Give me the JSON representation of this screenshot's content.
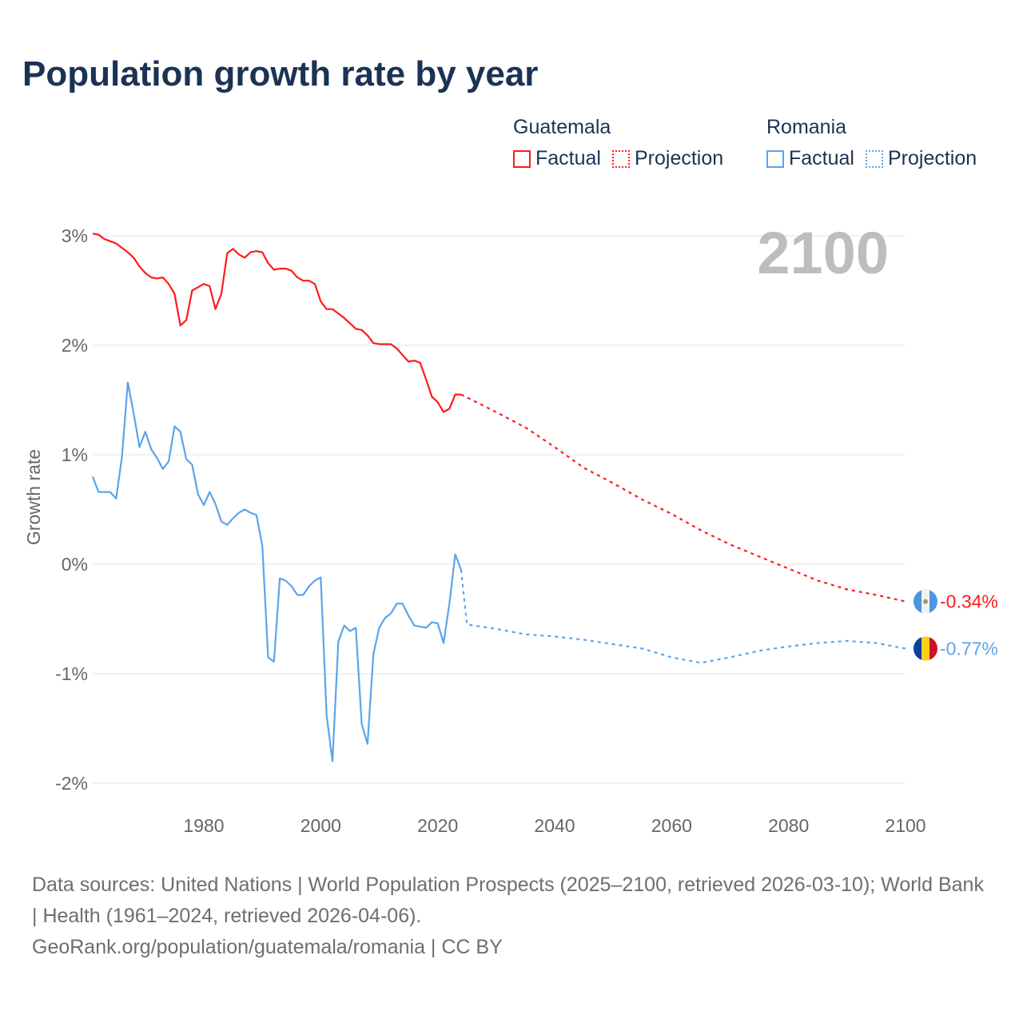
{
  "title": "Population growth rate by year",
  "legend": {
    "groups": [
      {
        "name": "Guatemala",
        "factual": "Factual",
        "projection": "Projection",
        "color": "#ff1a1a"
      },
      {
        "name": "Romania",
        "factual": "Factual",
        "projection": "Projection",
        "color": "#5ba4ea"
      }
    ]
  },
  "year_label": "2100",
  "footer": {
    "sources": "Data sources: United Nations | World Population Prospects (2025–2100, retrieved 2026-03-10); World Bank | Health (1961–2024, retrieved 2026-04-06).",
    "link": "GeoRank.org/population/guatemala/romania | CC BY"
  },
  "chart_data": {
    "type": "line",
    "title": "Population growth rate by year",
    "ylabel": "Growth rate",
    "xlabel": "",
    "xlim": [
      1961,
      2100
    ],
    "ylim": [
      -2.2,
      3.1
    ],
    "x_ticks": [
      "1980",
      "2000",
      "2020",
      "2040",
      "2060",
      "2080",
      "2100"
    ],
    "y_ticks": [
      "3%",
      "2%",
      "1%",
      "0%",
      "-1%",
      "-2%"
    ],
    "y_tick_values": [
      3,
      2,
      1,
      0,
      -1,
      -2
    ],
    "x_tick_values": [
      1980,
      2000,
      2020,
      2040,
      2060,
      2080,
      2100
    ],
    "grid": true,
    "series": [
      {
        "name": "Guatemala",
        "color": "#ff1a1a",
        "end_label": "-0.34%",
        "factual": {
          "x_start": 1961,
          "values": [
            3.02,
            3.01,
            2.97,
            2.95,
            2.93,
            2.89,
            2.85,
            2.8,
            2.72,
            2.66,
            2.62,
            2.61,
            2.62,
            2.56,
            2.47,
            2.18,
            2.23,
            2.5,
            2.53,
            2.56,
            2.54,
            2.33,
            2.47,
            2.84,
            2.88,
            2.83,
            2.8,
            2.85,
            2.86,
            2.85,
            2.75,
            2.69,
            2.7,
            2.7,
            2.68,
            2.62,
            2.59,
            2.59,
            2.56,
            2.4,
            2.33,
            2.33,
            2.29,
            2.25,
            2.2,
            2.15,
            2.14,
            2.09,
            2.02,
            2.01,
            2.01,
            2.01,
            1.97,
            1.91,
            1.85,
            1.86,
            1.84,
            1.69,
            1.53,
            1.48,
            1.39,
            1.42,
            1.55,
            1.55
          ]
        },
        "projection": {
          "x": [
            2024,
            2030,
            2035,
            2040,
            2045,
            2050,
            2055,
            2060,
            2065,
            2070,
            2075,
            2080,
            2085,
            2090,
            2095,
            2100
          ],
          "values": [
            1.55,
            1.39,
            1.25,
            1.07,
            0.88,
            0.74,
            0.59,
            0.46,
            0.31,
            0.18,
            0.07,
            -0.04,
            -0.15,
            -0.23,
            -0.28,
            -0.34
          ]
        }
      },
      {
        "name": "Romania",
        "color": "#5ba4ea",
        "end_label": "-0.77%",
        "factual": {
          "x_start": 1961,
          "values": [
            0.8,
            0.66,
            0.66,
            0.66,
            0.6,
            0.98,
            1.66,
            1.38,
            1.07,
            1.21,
            1.05,
            0.97,
            0.87,
            0.94,
            1.26,
            1.21,
            0.96,
            0.91,
            0.64,
            0.54,
            0.66,
            0.55,
            0.39,
            0.36,
            0.42,
            0.47,
            0.5,
            0.47,
            0.45,
            0.17,
            -0.85,
            -0.89,
            -0.13,
            -0.15,
            -0.2,
            -0.28,
            -0.28,
            -0.2,
            -0.15,
            -0.12,
            -1.38,
            -1.8,
            -0.71,
            -0.56,
            -0.61,
            -0.58,
            -1.46,
            -1.64,
            -0.82,
            -0.58,
            -0.49,
            -0.45,
            -0.36,
            -0.36,
            -0.47,
            -0.56,
            -0.57,
            -0.58,
            -0.53,
            -0.54,
            -0.72,
            -0.36,
            0.09,
            -0.05
          ]
        },
        "projection": {
          "x": [
            2024,
            2025,
            2030,
            2035,
            2040,
            2045,
            2050,
            2055,
            2060,
            2065,
            2070,
            2075,
            2080,
            2085,
            2090,
            2095,
            2100
          ],
          "values": [
            -0.05,
            -0.55,
            -0.59,
            -0.64,
            -0.66,
            -0.69,
            -0.73,
            -0.77,
            -0.85,
            -0.9,
            -0.85,
            -0.79,
            -0.75,
            -0.72,
            -0.7,
            -0.72,
            -0.77
          ]
        }
      }
    ]
  }
}
